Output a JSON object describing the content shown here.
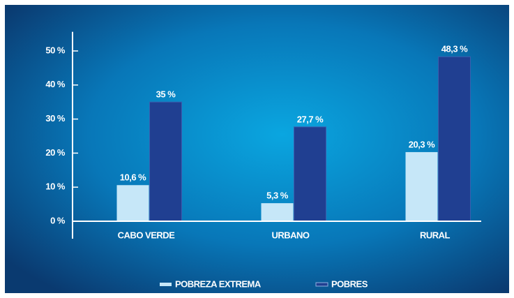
{
  "chart_data": {
    "type": "bar",
    "categories": [
      "CABO VERDE",
      "URBANO",
      "RURAL"
    ],
    "series": [
      {
        "name": "POBREZA EXTREMA",
        "color": "#c6e7f8",
        "values": [
          10.6,
          5.3,
          20.3
        ],
        "value_labels": [
          "10,6 %",
          "5,3 %",
          "20,3 %"
        ]
      },
      {
        "name": "POBRES",
        "color": "#203f91",
        "values": [
          35,
          27.7,
          48.3
        ],
        "value_labels": [
          "35 %",
          "27,7 %",
          "48,3 %"
        ]
      }
    ],
    "ylim": [
      0,
      55
    ],
    "yticks": [
      {
        "value": 0,
        "label": "0 %"
      },
      {
        "value": 10,
        "label": "10 %"
      },
      {
        "value": 20,
        "label": "20 %"
      },
      {
        "value": 30,
        "label": "30 %"
      },
      {
        "value": 40,
        "label": "40 %"
      },
      {
        "value": 50,
        "label": "50 %"
      }
    ]
  }
}
